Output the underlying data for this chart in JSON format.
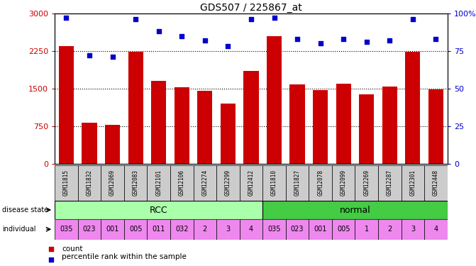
{
  "title": "GDS507 / 225867_at",
  "samples": [
    "GSM11815",
    "GSM11832",
    "GSM12069",
    "GSM12083",
    "GSM12101",
    "GSM12106",
    "GSM12274",
    "GSM12299",
    "GSM12412",
    "GSM11810",
    "GSM11827",
    "GSM12078",
    "GSM12099",
    "GSM12269",
    "GSM12287",
    "GSM12301",
    "GSM12448"
  ],
  "counts": [
    2350,
    820,
    780,
    2230,
    1650,
    1530,
    1450,
    1200,
    1850,
    2550,
    1580,
    1470,
    1600,
    1380,
    1540,
    2230,
    1480
  ],
  "percentiles": [
    97,
    72,
    71,
    96,
    88,
    85,
    82,
    78,
    96,
    97,
    83,
    80,
    83,
    81,
    82,
    96,
    83
  ],
  "disease_state": [
    "RCC",
    "RCC",
    "RCC",
    "RCC",
    "RCC",
    "RCC",
    "RCC",
    "RCC",
    "RCC",
    "normal",
    "normal",
    "normal",
    "normal",
    "normal",
    "normal",
    "normal",
    "normal"
  ],
  "individual": [
    "035",
    "023",
    "001",
    "005",
    "011",
    "032",
    "2",
    "3",
    "4",
    "035",
    "023",
    "001",
    "005",
    "1",
    "2",
    "3",
    "4"
  ],
  "bar_color": "#cc0000",
  "dot_color": "#0000cc",
  "rcc_color": "#aaffaa",
  "normal_color": "#44cc44",
  "individual_color": "#ee88ee",
  "sample_bg_color": "#cccccc",
  "ylim_left": [
    0,
    3000
  ],
  "ylim_right": [
    0,
    100
  ],
  "yticks_left": [
    0,
    750,
    1500,
    2250,
    3000
  ],
  "yticks_right": [
    0,
    25,
    50,
    75,
    100
  ],
  "ytick_labels_left": [
    "0",
    "750",
    "1500",
    "2250",
    "3000"
  ],
  "ytick_labels_right": [
    "0",
    "25",
    "50",
    "75",
    "100%"
  ],
  "legend_count": "count",
  "legend_percentile": "percentile rank within the sample",
  "label_disease_state": "disease state",
  "label_individual": "individual"
}
